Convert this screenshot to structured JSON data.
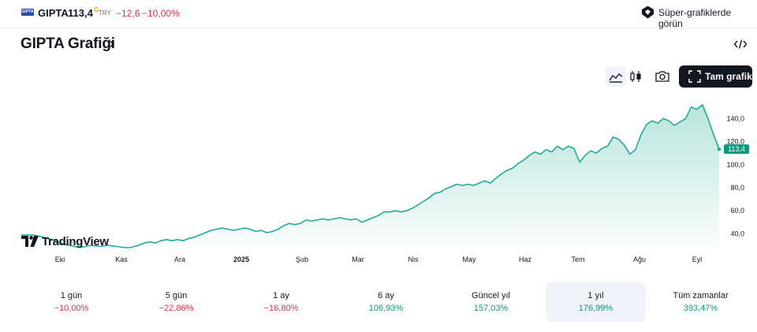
{
  "header": {
    "logo_text": "GIPTA",
    "ticker": "GIPTA",
    "price": "113,4",
    "price_sup": "G",
    "currency": "TRY",
    "change_abs": "−12,6",
    "change_pct": "−10,00%",
    "super_charts_label": "Süper-grafiklerde görün",
    "colors": {
      "down": "#e0314b",
      "up": "#089981",
      "brand": "#2a4ca3"
    }
  },
  "title": {
    "text": "GIPTA Grafiği",
    "chevron": "›"
  },
  "toolbar": {
    "icons": [
      "area-chart-icon",
      "candlestick-icon",
      "camera-icon",
      "code-embed-icon",
      "fullscreen-icon"
    ],
    "fullscreen_label": "Tam grafik"
  },
  "watermark": {
    "text": "TradingView"
  },
  "chart_data": {
    "type": "area",
    "series": [
      {
        "values": [
          [
            0,
            39
          ],
          [
            4,
            39
          ],
          [
            8,
            37
          ],
          [
            11,
            35
          ],
          [
            14,
            32
          ],
          [
            17,
            30
          ],
          [
            19,
            29
          ],
          [
            21,
            28
          ],
          [
            23,
            29
          ],
          [
            25,
            30
          ],
          [
            28,
            29
          ],
          [
            31,
            30
          ],
          [
            34,
            29
          ],
          [
            37,
            28
          ],
          [
            39,
            28
          ],
          [
            42,
            30
          ],
          [
            44,
            32
          ],
          [
            46,
            33
          ],
          [
            48,
            32
          ],
          [
            50,
            34
          ],
          [
            52,
            35
          ],
          [
            54,
            34
          ],
          [
            56,
            35
          ],
          [
            58,
            34
          ],
          [
            60,
            36
          ],
          [
            62,
            37
          ],
          [
            64,
            39
          ],
          [
            66,
            41
          ],
          [
            68,
            43
          ],
          [
            70,
            44
          ],
          [
            72,
            45
          ],
          [
            74,
            44
          ],
          [
            76,
            43
          ],
          [
            78,
            44
          ],
          [
            80,
            45
          ],
          [
            82,
            44
          ],
          [
            84,
            42
          ],
          [
            86,
            43
          ],
          [
            88,
            41
          ],
          [
            90,
            42
          ],
          [
            92,
            44
          ],
          [
            94,
            47
          ],
          [
            96,
            49
          ],
          [
            98,
            48
          ],
          [
            100,
            49
          ],
          [
            102,
            52
          ],
          [
            104,
            51
          ],
          [
            106,
            52
          ],
          [
            108,
            53
          ],
          [
            110,
            52
          ],
          [
            112,
            53
          ],
          [
            114,
            54
          ],
          [
            116,
            53
          ],
          [
            118,
            52
          ],
          [
            120,
            53
          ],
          [
            122,
            50
          ],
          [
            124,
            52
          ],
          [
            126,
            54
          ],
          [
            128,
            56
          ],
          [
            130,
            59
          ],
          [
            132,
            59
          ],
          [
            134,
            60
          ],
          [
            136,
            59
          ],
          [
            138,
            60
          ],
          [
            140,
            62
          ],
          [
            142,
            65
          ],
          [
            144,
            68
          ],
          [
            146,
            71
          ],
          [
            148,
            75
          ],
          [
            150,
            76
          ],
          [
            152,
            79
          ],
          [
            154,
            81
          ],
          [
            156,
            83
          ],
          [
            158,
            82
          ],
          [
            160,
            83
          ],
          [
            162,
            82
          ],
          [
            164,
            84
          ],
          [
            166,
            86
          ],
          [
            168,
            84
          ],
          [
            170,
            88
          ],
          [
            172,
            92
          ],
          [
            174,
            95
          ],
          [
            176,
            97
          ],
          [
            178,
            101
          ],
          [
            180,
            104
          ],
          [
            182,
            108
          ],
          [
            184,
            111
          ],
          [
            186,
            109
          ],
          [
            188,
            113
          ],
          [
            190,
            111
          ],
          [
            192,
            116
          ],
          [
            194,
            113
          ],
          [
            196,
            116
          ],
          [
            198,
            114
          ],
          [
            200,
            102
          ],
          [
            202,
            108
          ],
          [
            204,
            112
          ],
          [
            206,
            110
          ],
          [
            208,
            114
          ],
          [
            210,
            116
          ],
          [
            212,
            124
          ],
          [
            214,
            122
          ],
          [
            216,
            117
          ],
          [
            218,
            109
          ],
          [
            220,
            113
          ],
          [
            222,
            126
          ],
          [
            224,
            135
          ],
          [
            226,
            138
          ],
          [
            228,
            136
          ],
          [
            230,
            140
          ],
          [
            232,
            138
          ],
          [
            234,
            134
          ],
          [
            236,
            137
          ],
          [
            238,
            140
          ],
          [
            240,
            150
          ],
          [
            242,
            148
          ],
          [
            244,
            152
          ],
          [
            246,
            140
          ],
          [
            248,
            126
          ],
          [
            250,
            113.4
          ]
        ]
      }
    ],
    "x_tick_labels": [
      "Eki",
      "Kas",
      "Ara",
      "2025",
      "Şub",
      "Mar",
      "Nis",
      "May",
      "Haz",
      "Tem",
      "Ağu",
      "Eyl"
    ],
    "y_tick_labels": [
      "40,0",
      "60,0",
      "80,0",
      "100,0",
      "120,0",
      "140,0"
    ],
    "y_ticks": [
      40,
      60,
      80,
      100,
      120,
      140
    ],
    "ylim": [
      28,
      158
    ],
    "last_value_label": "113,4",
    "line_color": "#22ab94",
    "fill_color": "#22ab94"
  },
  "periods": [
    {
      "label": "1 gün",
      "value": "−10,00%",
      "trend": "neg",
      "active": false
    },
    {
      "label": "5 gün",
      "value": "−22,86%",
      "trend": "neg",
      "active": false
    },
    {
      "label": "1 ay",
      "value": "−16,80%",
      "trend": "neg",
      "active": false
    },
    {
      "label": "6 ay",
      "value": "106,93%",
      "trend": "pos",
      "active": false
    },
    {
      "label": "Güncel yıl",
      "value": "157,03%",
      "trend": "pos",
      "active": false
    },
    {
      "label": "1 yıl",
      "value": "176,99%",
      "trend": "pos",
      "active": true
    },
    {
      "label": "Tüm zamanlar",
      "value": "393,47%",
      "trend": "pos",
      "active": false
    }
  ]
}
